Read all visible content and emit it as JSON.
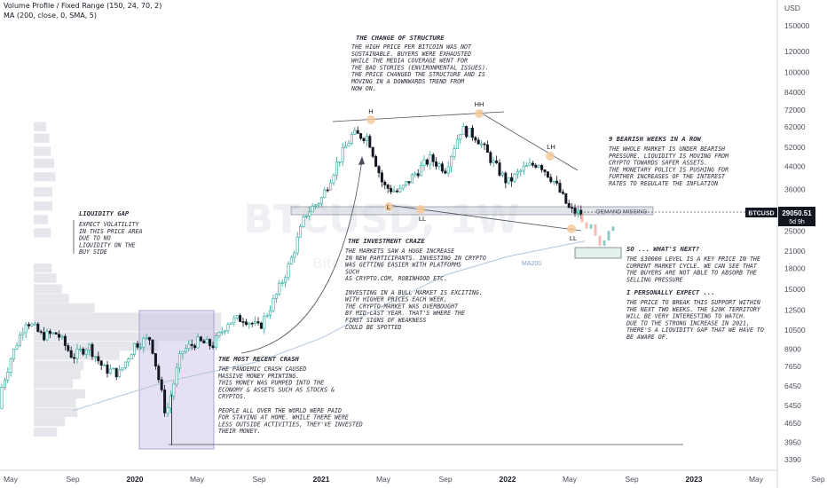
{
  "header": {
    "indicator1": "Volume Profile / Fixed Range (150, 24, 70, 2)",
    "indicator2": "MA (200, close, 0, SMA, 5)"
  },
  "watermark": {
    "symbol": "BTCUSD, 1W",
    "name": "Bitcoin / U.S. Dollar"
  },
  "colors": {
    "up": "#26a69a",
    "down": "#131722",
    "ma": "#b2c6dd",
    "highlight": "#f5c99b",
    "zone": "#d1d4dc",
    "box": "#cfc9e8",
    "price_tag": "#131722"
  },
  "chart_data": {
    "type": "candlestick",
    "title": "",
    "y_axis": {
      "unit": "USD",
      "scale": "log",
      "ticks": [
        150000,
        120000,
        100000,
        84000,
        72000,
        62000,
        52000,
        44000,
        36000,
        30000,
        25000,
        21000,
        18000,
        15000,
        12500,
        10500,
        8900,
        7650,
        6450,
        5450,
        4650,
        3950,
        3390
      ],
      "range": [
        3100,
        180000
      ]
    },
    "x_axis": {
      "ticks": [
        "May",
        "Sep",
        "2020",
        "May",
        "Sep",
        "2021",
        "May",
        "Sep",
        "2022",
        "May",
        "Sep",
        "2023",
        "May",
        "Sep"
      ]
    },
    "price_path": [
      {
        "t": "2019-04",
        "v": 5300
      },
      {
        "t": "2019-05",
        "v": 8200
      },
      {
        "t": "2019-06",
        "v": 11500
      },
      {
        "t": "2019-07",
        "v": 10000
      },
      {
        "t": "2019-08",
        "v": 10200
      },
      {
        "t": "2019-09",
        "v": 8300
      },
      {
        "t": "2019-10",
        "v": 9200
      },
      {
        "t": "2019-11",
        "v": 7500
      },
      {
        "t": "2019-12",
        "v": 7200
      },
      {
        "t": "2020-01",
        "v": 9300
      },
      {
        "t": "2020-02",
        "v": 9800
      },
      {
        "t": "2020-03",
        "v": 5000
      },
      {
        "t": "2020-04",
        "v": 8700
      },
      {
        "t": "2020-05",
        "v": 9500
      },
      {
        "t": "2020-06",
        "v": 9200
      },
      {
        "t": "2020-07",
        "v": 11300
      },
      {
        "t": "2020-08",
        "v": 11700
      },
      {
        "t": "2020-09",
        "v": 10700
      },
      {
        "t": "2020-10",
        "v": 13800
      },
      {
        "t": "2020-11",
        "v": 19000
      },
      {
        "t": "2020-12",
        "v": 29000
      },
      {
        "t": "2021-01",
        "v": 33000
      },
      {
        "t": "2021-02",
        "v": 45000
      },
      {
        "t": "2021-03",
        "v": 58000
      },
      {
        "t": "2021-04",
        "v": 57000
      },
      {
        "t": "2021-05",
        "v": 37000
      },
      {
        "t": "2021-06",
        "v": 35000
      },
      {
        "t": "2021-07",
        "v": 41000
      },
      {
        "t": "2021-08",
        "v": 47000
      },
      {
        "t": "2021-09",
        "v": 43000
      },
      {
        "t": "2021-10",
        "v": 61000
      },
      {
        "t": "2021-11",
        "v": 57000
      },
      {
        "t": "2021-12",
        "v": 46000
      },
      {
        "t": "2022-01",
        "v": 38000
      },
      {
        "t": "2022-02",
        "v": 43000
      },
      {
        "t": "2022-03",
        "v": 45500
      },
      {
        "t": "2022-04",
        "v": 38500
      },
      {
        "t": "2022-05",
        "v": 30000
      },
      {
        "t": "2022-05-23",
        "v": 29050
      }
    ],
    "last_price": {
      "label": "BTCUSD",
      "value": "29050.51",
      "countdown": "5d 9h"
    },
    "ma200_label": "MA200",
    "levels": [
      {
        "name": "demand-missing-zone",
        "low": 28500,
        "high": 31000,
        "label": "DEMAND MISSING"
      }
    ]
  },
  "annotations": {
    "change_of_structure": {
      "title": "THE CHANGE OF STRUCTURE",
      "lines": [
        "THE HIGH PRICE PER BITCOIN WAS NOT",
        "SUSTAINABLE. BUYERS WERE EXHAUSTED",
        "WHILE THE MEDIA COVERAGE WENT FOR",
        "THE BAD STORIES (ENVIRONMENTAL ISSUES).",
        "THE PRICE CHANGED THE STRUCTURE AND IS",
        "MOVING IN A DOWNWARDS TREND FROM",
        "NOW ON."
      ]
    },
    "bearish_weeks": {
      "title": "9 BEARISH WEEKS IN A ROW",
      "lines": [
        "THE WHOLE MARKET IS UNDER BEARISH",
        "PRESSURE. LIQUIDITY IS MOVING FROM",
        "CRYPTO TOWARDS SAFER ASSETS.",
        "THE MONETARY POLICY IS PUSHING FOR",
        "FURTHER INCREASES OF THE INTEREST",
        "RATES TO REGULATE THE INFLATION"
      ]
    },
    "liquidity_gap": {
      "title": "LIQUIDITY GAP",
      "lines": [
        "EXPECT VOLATILITY",
        "IN THIS PRICE AREA",
        "DUE TO NO",
        "LIQUIDITY ON THE",
        "BUY SIDE"
      ]
    },
    "investment_craze": {
      "title": "THE INVESTMENT CRAZE",
      "lines": [
        "THE MARKETS SAW A HUGE INCREASE",
        "IN NEW PARTICIPANTS. INVESTING IN CRYPTO",
        "WAS GETTING EASIER WITH PLATFORMS",
        "SUCH",
        "AS CRYPTO.COM, ROBINHOOD ETC.",
        "",
        "INVESTING IN A BULL MARKET IS EXCITING.",
        "WITH HIGHER PRICES EACH WEEK,",
        "THE CRYPTO-MARKET WAS OVERBOUGHT",
        "BY MID-LAST YEAR. THAT'S WHERE THE",
        "FIRST SIGNS OF WEAKNESS",
        "COULD BE SPOTTED"
      ]
    },
    "whats_next": {
      "title": "SO ... WHAT'S NEXT?",
      "lines": [
        "THE $30000 LEVEL IS A KEY PRICE IN THE",
        "CURRENT MARKET CYCLE. WE CAN SEE THAT",
        "THE BUYERS ARE NOT ABLE TO ABSORB THE",
        "SELLING PRESSURE"
      ],
      "title2": "I PERSONALLY EXPECT ...",
      "lines2": [
        "THE PRICE TO BREAK THIS SUPPORT WITHIN",
        "THE NEXT TWO WEEKS. THE $20K TERRITORY",
        "WILL BE VERY INTERESTING TO WATCH.",
        "DUE TO THE STRONG INCREASE IN 2021,",
        "THERE'S A LIQUIDITY GAP THAT WE HAVE TO",
        "BE AWARE OF."
      ]
    },
    "recent_crash": {
      "title": "THE MOST RECENT CRASH",
      "lines": [
        "THE PANDEMIC CRASH CAUSED",
        "MASSIVE MONEY PRINTING.",
        "THIS MONEY WAS PUMPED INTO THE",
        "ECONOMY & ASSETS SUCH AS STOCKS &",
        "CRYPTOS.",
        "",
        "PEOPLE ALL OVER THE WORLD WERE PAID",
        "FOR STAYING AT HOME. WHILE THERE WERE",
        "LESS OUTSIDE ACTIVITIES, THEY'VE INVESTED",
        "THEIR MONEY."
      ]
    },
    "swing_labels": {
      "h": "H",
      "hh": "HH",
      "lh": "LH",
      "l1": "L",
      "l2": "LL",
      "l3": "LL"
    }
  }
}
